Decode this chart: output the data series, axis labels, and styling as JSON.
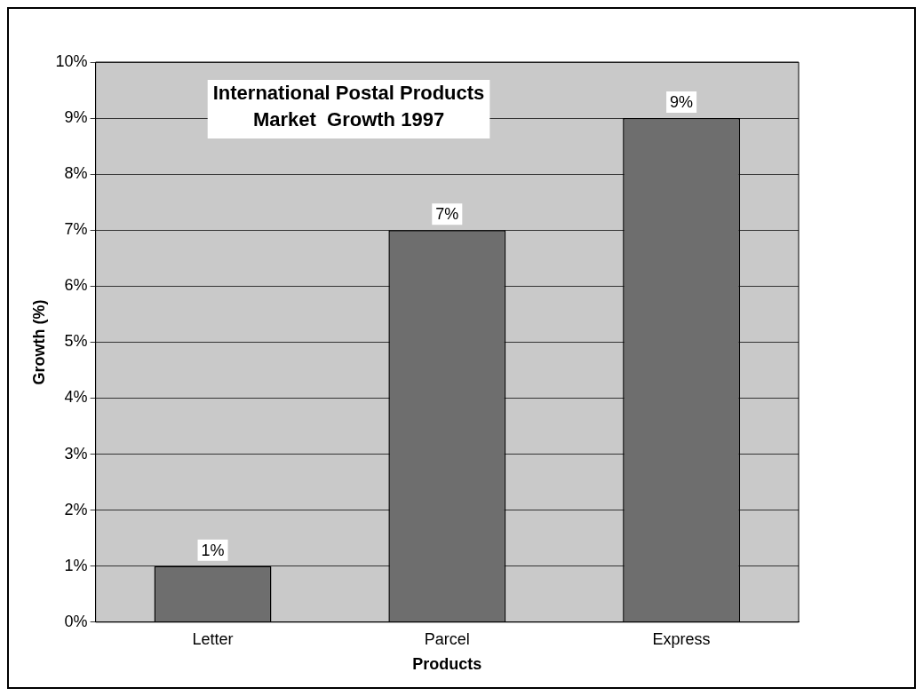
{
  "chart_data": {
    "type": "bar",
    "title": "International Postal Products\nMarket  Growth 1997",
    "xlabel": "Products",
    "ylabel": "Growth (%)",
    "categories": [
      "Letter",
      "Parcel",
      "Express"
    ],
    "values": [
      1,
      7,
      9
    ],
    "color": "#6e6e6e",
    "value_labels": [
      "1%",
      "7%",
      "9%"
    ],
    "ylim": [
      0,
      10
    ],
    "yticks": [
      {
        "value": 0,
        "label": "0%"
      },
      {
        "value": 1,
        "label": "1%"
      },
      {
        "value": 2,
        "label": "2%"
      },
      {
        "value": 3,
        "label": "3%"
      },
      {
        "value": 4,
        "label": "4%"
      },
      {
        "value": 5,
        "label": "5%"
      },
      {
        "value": 6,
        "label": "6%"
      },
      {
        "value": 7,
        "label": "7%"
      },
      {
        "value": 8,
        "label": "8%"
      },
      {
        "value": 9,
        "label": "9%"
      },
      {
        "value": 10,
        "label": "10%"
      }
    ],
    "grid": "y",
    "legend": false
  }
}
